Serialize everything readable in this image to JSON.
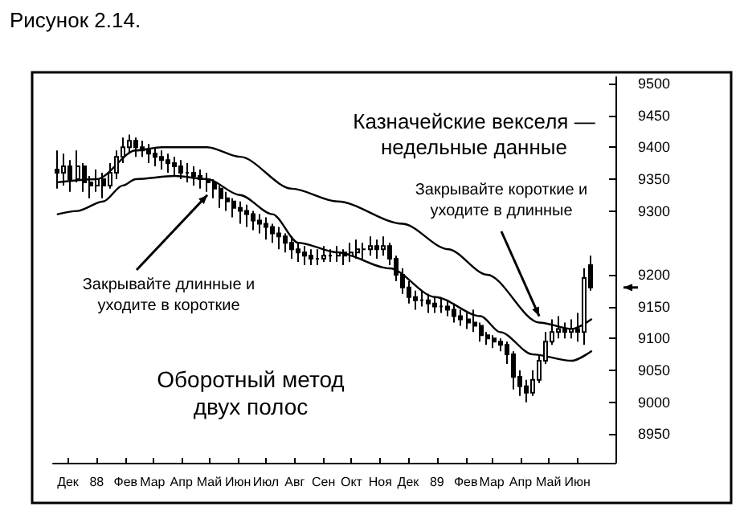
{
  "chart_data": {
    "type": "candlestick",
    "title": "Рисунок 2.14.",
    "subtitle": "Казначейские векселя — недельные данные",
    "color": "#000000",
    "annotations": [
      {
        "text": "Закрывайте длинные и уходите в короткие",
        "x": "1988-05-13",
        "y": 9325
      },
      {
        "text": "Закрывайте короткие и уходите в длинные",
        "x": "1989-05-05",
        "y": 9135
      },
      "Оборотный метод двух полос"
    ],
    "x": [
      "1987-12-04",
      "1987-12-11",
      "1987-12-18",
      "1987-12-25",
      "1988-01-01",
      "1988-01-08",
      "1988-01-15",
      "1988-01-22",
      "1988-01-29",
      "1988-02-05",
      "1988-02-12",
      "1988-02-19",
      "1988-02-26",
      "1988-03-04",
      "1988-03-11",
      "1988-03-18",
      "1988-03-25",
      "1988-04-01",
      "1988-04-08",
      "1988-04-15",
      "1988-04-22",
      "1988-04-29",
      "1988-05-06",
      "1988-05-13",
      "1988-05-20",
      "1988-05-27",
      "1988-06-03",
      "1988-06-10",
      "1988-06-17",
      "1988-06-24",
      "1988-07-01",
      "1988-07-08",
      "1988-07-15",
      "1988-07-22",
      "1988-07-29",
      "1988-08-05",
      "1988-08-12",
      "1988-08-19",
      "1988-08-26",
      "1988-09-02",
      "1988-09-09",
      "1988-09-16",
      "1988-09-23",
      "1988-09-30",
      "1988-10-07",
      "1988-10-14",
      "1988-10-21",
      "1988-10-28",
      "1988-11-04",
      "1988-11-11",
      "1988-11-18",
      "1988-11-25",
      "1988-12-02",
      "1988-12-09",
      "1988-12-16",
      "1988-12-23",
      "1988-12-30",
      "1989-01-06",
      "1989-01-13",
      "1989-01-20",
      "1989-01-27",
      "1989-02-03",
      "1989-02-10",
      "1989-02-17",
      "1989-02-24",
      "1989-03-03",
      "1989-03-10",
      "1989-03-17",
      "1989-03-24",
      "1989-03-31",
      "1989-04-07",
      "1989-04-14",
      "1989-04-21",
      "1989-04-28",
      "1989-05-05",
      "1989-05-12",
      "1989-05-19",
      "1989-05-26",
      "1989-06-02",
      "1989-06-09",
      "1989-06-16",
      "1989-06-23",
      "1989-06-30"
    ],
    "ohlc": [
      [
        9365,
        9395,
        9335,
        9360
      ],
      [
        9360,
        9390,
        9340,
        9370
      ],
      [
        9370,
        9380,
        9330,
        9350
      ],
      [
        9350,
        9395,
        9345,
        9370
      ],
      [
        9370,
        9375,
        9330,
        9345
      ],
      [
        9345,
        9355,
        9320,
        9340
      ],
      [
        9340,
        9365,
        9330,
        9350
      ],
      [
        9350,
        9360,
        9320,
        9340
      ],
      [
        9340,
        9375,
        9335,
        9360
      ],
      [
        9360,
        9395,
        9350,
        9385
      ],
      [
        9385,
        9415,
        9375,
        9400
      ],
      [
        9400,
        9420,
        9390,
        9410
      ],
      [
        9410,
        9415,
        9385,
        9400
      ],
      [
        9400,
        9410,
        9385,
        9395
      ],
      [
        9395,
        9405,
        9375,
        9390
      ],
      [
        9390,
        9400,
        9370,
        9385
      ],
      [
        9385,
        9395,
        9365,
        9380
      ],
      [
        9380,
        9390,
        9360,
        9375
      ],
      [
        9375,
        9385,
        9355,
        9370
      ],
      [
        9370,
        9380,
        9350,
        9360
      ],
      [
        9360,
        9375,
        9345,
        9360
      ],
      [
        9360,
        9370,
        9340,
        9355
      ],
      [
        9355,
        9365,
        9335,
        9350
      ],
      [
        9350,
        9360,
        9330,
        9345
      ],
      [
        9345,
        9350,
        9320,
        9335
      ],
      [
        9335,
        9340,
        9305,
        9320
      ],
      [
        9320,
        9330,
        9300,
        9315
      ],
      [
        9315,
        9320,
        9290,
        9305
      ],
      [
        9305,
        9315,
        9280,
        9300
      ],
      [
        9300,
        9310,
        9275,
        9295
      ],
      [
        9295,
        9300,
        9270,
        9285
      ],
      [
        9285,
        9295,
        9265,
        9280
      ],
      [
        9280,
        9290,
        9255,
        9275
      ],
      [
        9275,
        9280,
        9250,
        9265
      ],
      [
        9265,
        9275,
        9240,
        9260
      ],
      [
        9260,
        9265,
        9235,
        9250
      ],
      [
        9250,
        9260,
        9225,
        9240
      ],
      [
        9240,
        9250,
        9220,
        9235
      ],
      [
        9235,
        9245,
        9215,
        9230
      ],
      [
        9230,
        9240,
        9215,
        9225
      ],
      [
        9225,
        9240,
        9215,
        9225
      ],
      [
        9225,
        9245,
        9220,
        9230
      ],
      [
        9230,
        9240,
        9220,
        9230
      ],
      [
        9230,
        9245,
        9220,
        9235
      ],
      [
        9235,
        9240,
        9215,
        9230
      ],
      [
        9230,
        9250,
        9220,
        9235
      ],
      [
        9235,
        9255,
        9225,
        9240
      ],
      [
        9240,
        9250,
        9225,
        9240
      ],
      [
        9240,
        9260,
        9230,
        9245
      ],
      [
        9245,
        9255,
        9225,
        9240
      ],
      [
        9240,
        9260,
        9230,
        9245
      ],
      [
        9245,
        9250,
        9215,
        9225
      ],
      [
        9225,
        9230,
        9190,
        9200
      ],
      [
        9200,
        9210,
        9170,
        9180
      ],
      [
        9180,
        9190,
        9155,
        9165
      ],
      [
        9165,
        9175,
        9145,
        9160
      ],
      [
        9160,
        9175,
        9150,
        9160
      ],
      [
        9160,
        9170,
        9140,
        9155
      ],
      [
        9155,
        9165,
        9140,
        9150
      ],
      [
        9150,
        9165,
        9140,
        9150
      ],
      [
        9150,
        9160,
        9135,
        9145
      ],
      [
        9145,
        9155,
        9125,
        9135
      ],
      [
        9135,
        9145,
        9120,
        9130
      ],
      [
        9130,
        9140,
        9115,
        9125
      ],
      [
        9125,
        9145,
        9110,
        9120
      ],
      [
        9120,
        9125,
        9095,
        9105
      ],
      [
        9105,
        9110,
        9090,
        9100
      ],
      [
        9100,
        9105,
        9085,
        9095
      ],
      [
        9095,
        9100,
        9080,
        9090
      ],
      [
        9090,
        9095,
        9060,
        9075
      ],
      [
        9075,
        9080,
        9020,
        9040
      ],
      [
        9040,
        9050,
        9010,
        9025
      ],
      [
        9025,
        9035,
        9000,
        9015
      ],
      [
        9015,
        9050,
        9010,
        9035
      ],
      [
        9035,
        9075,
        9030,
        9065
      ],
      [
        9065,
        9110,
        9060,
        9095
      ],
      [
        9095,
        9130,
        9090,
        9110
      ],
      [
        9110,
        9135,
        9100,
        9115
      ],
      [
        9115,
        9125,
        9100,
        9110
      ],
      [
        9110,
        9130,
        9100,
        9115
      ],
      [
        9115,
        9140,
        9095,
        9110
      ],
      [
        9110,
        9210,
        9090,
        9195
      ],
      [
        9215,
        9230,
        9175,
        9180
      ]
    ],
    "series": [
      {
        "type": "line",
        "color": "#000000",
        "x": [
          "1987-12-04",
          "1988-01-15",
          "1988-02-26",
          "1988-03-25",
          "1988-05-13",
          "1988-06-17",
          "1988-08-12",
          "1988-09-30",
          "1988-12-09",
          "1989-01-27",
          "1989-03-10",
          "1989-05-05",
          "1989-06-09",
          "1989-06-30"
        ],
        "values": [
          9345,
          9350,
          9395,
          9400,
          9400,
          9385,
          9335,
          9315,
          9280,
          9240,
          9200,
          9125,
          9115,
          9130
        ]
      },
      {
        "type": "line",
        "color": "#000000",
        "x": [
          "1987-12-04",
          "1987-12-25",
          "1988-01-22",
          "1988-02-12",
          "1988-02-26",
          "1988-04-08",
          "1988-05-13",
          "1988-06-17",
          "1988-07-22",
          "1988-08-19",
          "1988-09-30",
          "1988-11-25",
          "1989-01-13",
          "1989-03-03",
          "1989-03-24",
          "1989-04-28",
          "1989-06-09",
          "1989-06-30"
        ],
        "values": [
          9295,
          9300,
          9315,
          9340,
          9350,
          9355,
          9350,
          9325,
          9295,
          9250,
          9235,
          9210,
          9165,
          9135,
          9110,
          9075,
          9065,
          9080
        ]
      }
    ],
    "xlim": [
      "1987-11-29",
      "1989-07-26"
    ],
    "xticks": [
      {
        "value": "1987-12-15",
        "label": "Дек"
      },
      {
        "value": "1988-01-15",
        "label": "88"
      },
      {
        "value": "1988-02-15",
        "label": "Фев"
      },
      {
        "value": "1988-03-15",
        "label": "Мар"
      },
      {
        "value": "1988-04-15",
        "label": "Апр"
      },
      {
        "value": "1988-05-15",
        "label": "Май"
      },
      {
        "value": "1988-06-15",
        "label": "Июн"
      },
      {
        "value": "1988-07-15",
        "label": "Июл"
      },
      {
        "value": "1988-08-15",
        "label": "Авг"
      },
      {
        "value": "1988-09-15",
        "label": "Сен"
      },
      {
        "value": "1988-10-15",
        "label": "Окт"
      },
      {
        "value": "1988-11-15",
        "label": "Ноя"
      },
      {
        "value": "1988-12-15",
        "label": "Дек"
      },
      {
        "value": "1989-01-15",
        "label": "89"
      },
      {
        "value": "1989-02-15",
        "label": "Фев"
      },
      {
        "value": "1989-03-15",
        "label": "Мар"
      },
      {
        "value": "1989-04-15",
        "label": "Апр"
      },
      {
        "value": "1989-05-15",
        "label": "Май"
      },
      {
        "value": "1989-06-15",
        "label": "Июн"
      }
    ],
    "ylim": [
      8905,
      9510
    ],
    "yticks": [
      8950,
      9000,
      9050,
      9100,
      9150,
      9200,
      9300,
      9350,
      9400,
      9450,
      9500
    ]
  }
}
